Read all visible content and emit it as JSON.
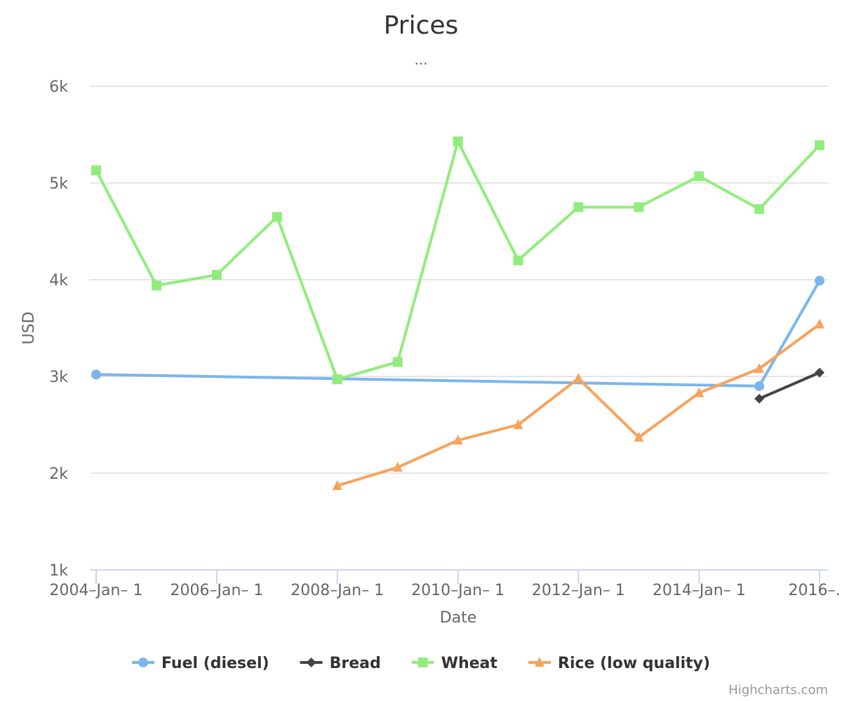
{
  "chart_data": {
    "type": "line",
    "title": "Prices",
    "subtitle": "...",
    "xlabel": "Date",
    "ylabel": "USD",
    "credits": "Highcharts.com",
    "ylim": [
      1000,
      6000
    ],
    "y_ticks": [
      1000,
      2000,
      3000,
      4000,
      5000,
      6000
    ],
    "y_tick_labels": [
      "1k",
      "2k",
      "3k",
      "4k",
      "5k",
      "6k"
    ],
    "x_range": [
      "2004-01-01",
      "2016-01-01"
    ],
    "x_tick_labels": [
      {
        "date": "2004-01-01",
        "label": "2004–Jan– 1"
      },
      {
        "date": "2006-01-01",
        "label": "2006–Jan– 1"
      },
      {
        "date": "2008-01-01",
        "label": "2008–Jan– 1"
      },
      {
        "date": "2010-01-01",
        "label": "2010–Jan– 1"
      },
      {
        "date": "2012-01-01",
        "label": "2012–Jan– 1"
      },
      {
        "date": "2014-01-01",
        "label": "2014–Jan– 1"
      },
      {
        "date": "2016-01-01",
        "label": "2016–…"
      }
    ],
    "legend_position": "bottom",
    "grid": true,
    "series": [
      {
        "name": "Fuel (diesel)",
        "color": "#7cb5ec",
        "marker": "circle",
        "x": [
          "2004-01-01",
          "2015-01-01",
          "2016-01-01"
        ],
        "values": [
          3020,
          2900,
          3990
        ]
      },
      {
        "name": "Bread",
        "color": "#434348",
        "marker": "diamond",
        "x": [
          "2015-01-01",
          "2016-01-01"
        ],
        "values": [
          2770,
          3040
        ]
      },
      {
        "name": "Wheat",
        "color": "#90ed7d",
        "marker": "square",
        "x": [
          "2004-01-01",
          "2005-01-01",
          "2006-01-01",
          "2007-01-01",
          "2008-01-01",
          "2009-01-01",
          "2010-01-01",
          "2011-01-01",
          "2012-01-01",
          "2013-01-01",
          "2014-01-01",
          "2015-01-01",
          "2016-01-01"
        ],
        "values": [
          5130,
          3940,
          4050,
          4650,
          2970,
          3150,
          5430,
          4200,
          4750,
          4750,
          5070,
          4730,
          5390
        ]
      },
      {
        "name": "Rice (low quality)",
        "color": "#f7a35c",
        "marker": "triangle",
        "x": [
          "2008-01-01",
          "2009-01-01",
          "2010-01-01",
          "2011-01-01",
          "2012-01-01",
          "2013-01-01",
          "2014-01-01",
          "2015-01-01",
          "2016-01-01"
        ],
        "values": [
          1870,
          2060,
          2340,
          2500,
          2980,
          2370,
          2830,
          3080,
          3540
        ]
      }
    ]
  }
}
